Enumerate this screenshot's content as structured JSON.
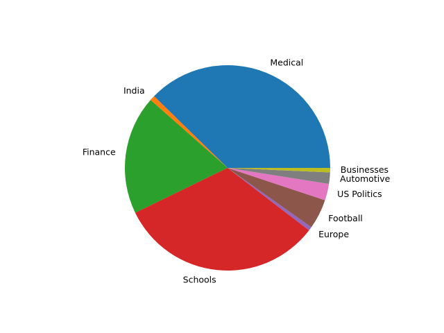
{
  "chart_data": {
    "type": "pie",
    "title": "",
    "start_angle_deg": 0,
    "direction": "counterclockwise",
    "slices": [
      {
        "label": "Medical",
        "value": 37.7,
        "color": "#1f77b4"
      },
      {
        "label": "India",
        "value": 0.8,
        "color": "#ff7f0e"
      },
      {
        "label": "Finance",
        "value": 18.7,
        "color": "#2ca02c"
      },
      {
        "label": "Schools",
        "value": 32.4,
        "color": "#d62728"
      },
      {
        "label": "Europe",
        "value": 0.6,
        "color": "#9467bd"
      },
      {
        "label": "Football",
        "value": 4.7,
        "color": "#8c564b"
      },
      {
        "label": "US Politics",
        "value": 2.6,
        "color": "#e377c2"
      },
      {
        "label": "Automotive",
        "value": 1.8,
        "color": "#7f7f7f"
      },
      {
        "label": "Businesses",
        "value": 0.7,
        "color": "#bcbd22"
      }
    ]
  }
}
